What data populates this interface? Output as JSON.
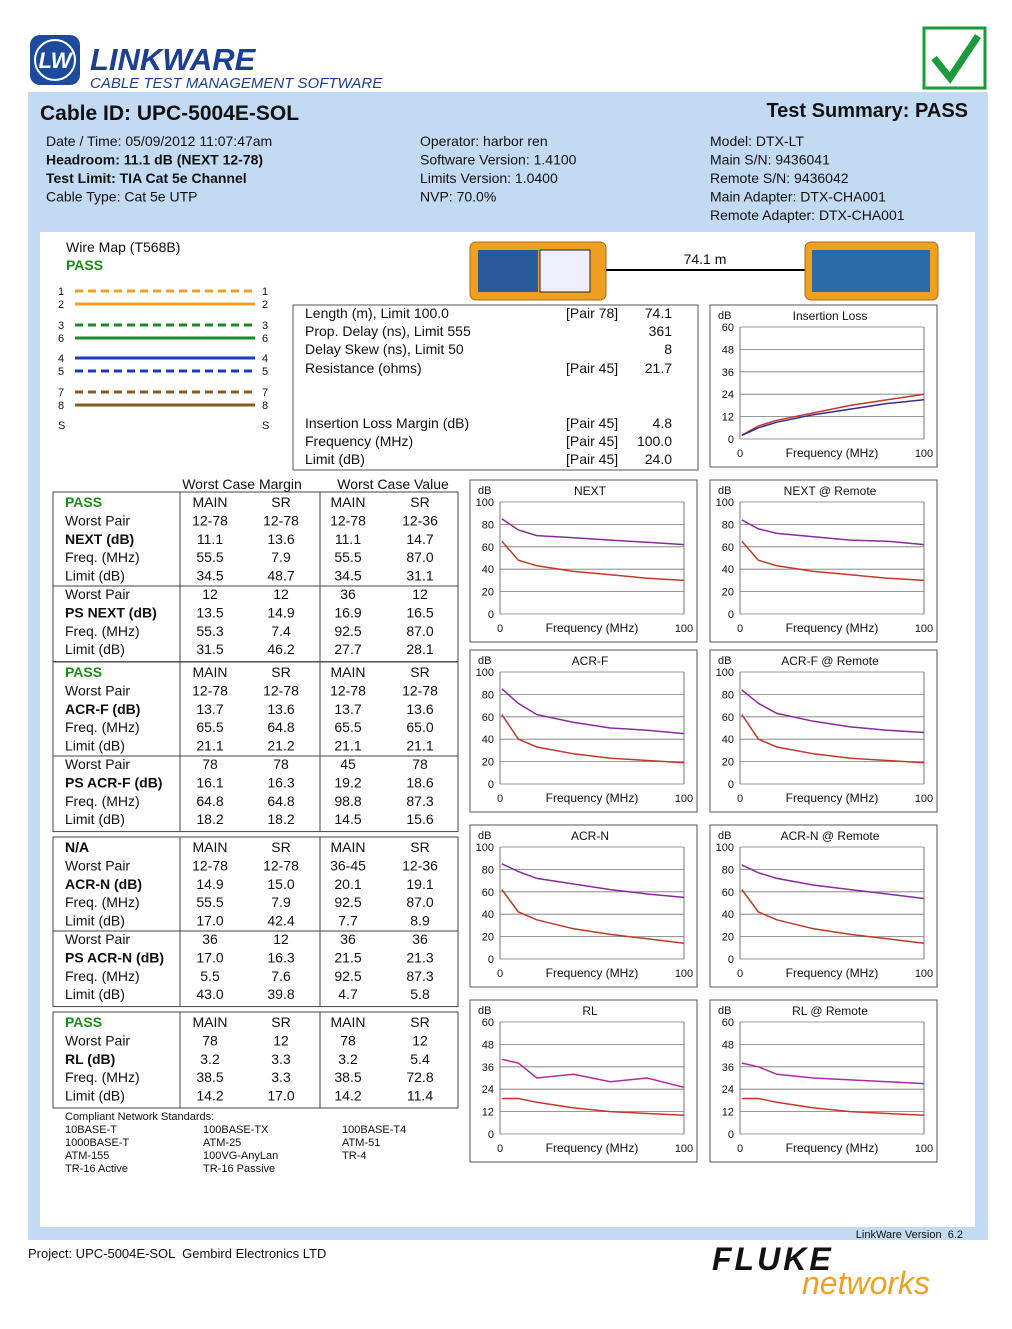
{
  "header": {
    "logo_mark": "LW",
    "logo_title": "LINKWARE",
    "logo_subtitle": "CABLE TEST MANAGEMENT SOFTWARE"
  },
  "cable_id": "Cable ID: UPC-5004E-SOL",
  "summary": "Test Summary: PASS",
  "info": [
    [
      "Date / Time: 05/09/2012 11:07:47am",
      "Headroom: 11.1 dB (NEXT 12-78)",
      "Test Limit: TIA Cat 5e Channel",
      "Cable Type: Cat 5e UTP"
    ],
    [
      "Operator: harbor ren",
      "Software Version: 1.4100",
      "Limits Version: 1.0400",
      "NVP: 70.0%"
    ],
    [
      "Model: DTX-LT",
      "Main S/N: 9436041",
      "Remote S/N: 9436042",
      "Main Adapter: DTX-CHA001",
      "Remote Adapter: DTX-CHA001"
    ]
  ],
  "wire_map": {
    "title": "Wire Map (T568B)",
    "result": "PASS",
    "pins": [
      "1",
      "2",
      "3",
      "6",
      "4",
      "5",
      "7",
      "8",
      "S"
    ]
  },
  "length_label": "74.1 m",
  "measurements": [
    {
      "label": "Length (m), Limit 100.0",
      "pair": "[Pair 78]",
      "value": "74.1"
    },
    {
      "label": "Prop. Delay (ns), Limit 555",
      "value": "361"
    },
    {
      "label": "Delay Skew (ns), Limit 50",
      "value": "8"
    },
    {
      "label": "Resistance (ohms)",
      "pair": "[Pair 45]",
      "value": "21.7"
    },
    {
      "label": "Insertion Loss Margin (dB)",
      "pair": "[Pair 45]",
      "value": "4.8"
    },
    {
      "label": "Frequency (MHz)",
      "pair": "[Pair 45]",
      "value": "100.0"
    },
    {
      "label": "Limit (dB)",
      "pair": "[Pair 45]",
      "value": "24.0"
    }
  ],
  "tables": {
    "group_headers": [
      "Worst Case Margin",
      "Worst Case Value"
    ],
    "sections": [
      {
        "status_color": "#1a8a1a",
        "header": [
          "PASS",
          "MAIN",
          "SR",
          "MAIN",
          "SR"
        ],
        "rows": [
          [
            "Worst Pair",
            "12-78",
            "12-78",
            "12-78",
            "12-36"
          ],
          [
            "NEXT (dB)",
            "11.1",
            "13.6",
            "11.1",
            "14.7"
          ],
          [
            "Freq. (MHz)",
            "55.5",
            "7.9",
            "55.5",
            "87.0"
          ],
          [
            "Limit (dB)",
            "34.5",
            "48.7",
            "34.5",
            "31.1"
          ],
          [
            "Worst Pair",
            "12",
            "12",
            "36",
            "12"
          ],
          [
            "PS NEXT (dB)",
            "13.5",
            "14.9",
            "16.9",
            "16.5"
          ],
          [
            "Freq. (MHz)",
            "55.3",
            "7.4",
            "92.5",
            "87.0"
          ],
          [
            "Limit (dB)",
            "31.5",
            "46.2",
            "27.7",
            "28.1"
          ]
        ]
      },
      {
        "status_color": "#1a8a1a",
        "header": [
          "PASS",
          "MAIN",
          "SR",
          "MAIN",
          "SR"
        ],
        "rows": [
          [
            "Worst Pair",
            "12-78",
            "12-78",
            "12-78",
            "12-78"
          ],
          [
            "ACR-F (dB)",
            "13.7",
            "13.6",
            "13.7",
            "13.6"
          ],
          [
            "Freq. (MHz)",
            "65.5",
            "64.8",
            "65.5",
            "65.0"
          ],
          [
            "Limit (dB)",
            "21.1",
            "21.2",
            "21.1",
            "21.1"
          ],
          [
            "Worst Pair",
            "78",
            "78",
            "45",
            "78"
          ],
          [
            "PS ACR-F (dB)",
            "16.1",
            "16.3",
            "19.2",
            "18.6"
          ],
          [
            "Freq. (MHz)",
            "64.8",
            "64.8",
            "98.8",
            "87.3"
          ],
          [
            "Limit (dB)",
            "18.2",
            "18.2",
            "14.5",
            "15.6"
          ]
        ]
      },
      {
        "status_color": "#000000",
        "header": [
          "N/A",
          "MAIN",
          "SR",
          "MAIN",
          "SR"
        ],
        "rows": [
          [
            "Worst Pair",
            "12-78",
            "12-78",
            "36-45",
            "12-36"
          ],
          [
            "ACR-N (dB)",
            "14.9",
            "15.0",
            "20.1",
            "19.1"
          ],
          [
            "Freq. (MHz)",
            "55.5",
            "7.9",
            "92.5",
            "87.0"
          ],
          [
            "Limit (dB)",
            "17.0",
            "42.4",
            "7.7",
            "8.9"
          ],
          [
            "Worst Pair",
            "36",
            "12",
            "36",
            "36"
          ],
          [
            "PS ACR-N (dB)",
            "17.0",
            "16.3",
            "21.5",
            "21.3"
          ],
          [
            "Freq. (MHz)",
            "5.5",
            "7.6",
            "92.5",
            "87.3"
          ],
          [
            "Limit (dB)",
            "43.0",
            "39.8",
            "4.7",
            "5.8"
          ]
        ]
      },
      {
        "status_color": "#1a8a1a",
        "header": [
          "PASS",
          "MAIN",
          "SR",
          "MAIN",
          "SR"
        ],
        "rows": [
          [
            "Worst Pair",
            "78",
            "12",
            "78",
            "12"
          ],
          [
            "RL (dB)",
            "3.2",
            "3.3",
            "3.2",
            "5.4"
          ],
          [
            "Freq. (MHz)",
            "38.5",
            "3.3",
            "38.5",
            "72.8"
          ],
          [
            "Limit (dB)",
            "14.2",
            "17.0",
            "14.2",
            "11.4"
          ]
        ]
      }
    ]
  },
  "standards": {
    "title": "Compliant Network Standards:",
    "items": [
      [
        "10BASE-T",
        "100BASE-TX",
        "100BASE-T4"
      ],
      [
        "1000BASE-T",
        "ATM-25",
        "ATM-51"
      ],
      [
        "ATM-155",
        "100VG-AnyLan",
        "TR-4"
      ],
      [
        "TR-16 Active",
        "TR-16 Passive"
      ]
    ]
  },
  "chart_data": [
    {
      "type": "line",
      "title": "Insertion Loss",
      "ylabel": "dB",
      "xlabel": "Frequency (MHz)",
      "x": [
        1,
        10,
        20,
        40,
        60,
        80,
        100
      ],
      "xlim": [
        0,
        100
      ],
      "xticks": [
        0,
        100
      ],
      "ylim": [
        0,
        60
      ],
      "yticks": [
        0,
        12,
        24,
        36,
        48,
        60
      ],
      "series": [
        {
          "color": "#c0392b",
          "values": [
            2,
            7,
            10,
            14,
            18,
            21,
            24
          ]
        },
        {
          "color": "#3a2a8c",
          "values": [
            2,
            6,
            9,
            13,
            16,
            19,
            21
          ]
        }
      ]
    },
    {
      "type": "line",
      "title": "NEXT",
      "ylabel": "dB",
      "xlabel": "Frequency (MHz)",
      "x": [
        1,
        10,
        20,
        40,
        60,
        80,
        100
      ],
      "xlim": [
        0,
        100
      ],
      "xticks": [
        0,
        100
      ],
      "ylim": [
        0,
        100
      ],
      "yticks": [
        0,
        20,
        40,
        60,
        80,
        100
      ],
      "series": [
        {
          "color": "#c0392b",
          "values": [
            65,
            48,
            43,
            38,
            35,
            32,
            30
          ]
        },
        {
          "color": "#8a2a9c",
          "values": [
            85,
            75,
            70,
            68,
            66,
            64,
            62
          ]
        }
      ]
    },
    {
      "type": "line",
      "title": "NEXT @ Remote",
      "ylabel": "dB",
      "xlabel": "Frequency (MHz)",
      "x": [
        1,
        10,
        20,
        40,
        60,
        80,
        100
      ],
      "xlim": [
        0,
        100
      ],
      "xticks": [
        0,
        100
      ],
      "ylim": [
        0,
        100
      ],
      "yticks": [
        0,
        20,
        40,
        60,
        80,
        100
      ],
      "series": [
        {
          "color": "#c0392b",
          "values": [
            65,
            48,
            43,
            38,
            35,
            32,
            30
          ]
        },
        {
          "color": "#8a2a9c",
          "values": [
            84,
            76,
            72,
            69,
            66,
            65,
            62
          ]
        }
      ]
    },
    {
      "type": "line",
      "title": "ACR-F",
      "ylabel": "dB",
      "xlabel": "Frequency (MHz)",
      "x": [
        1,
        10,
        20,
        40,
        60,
        80,
        100
      ],
      "xlim": [
        0,
        100
      ],
      "xticks": [
        0,
        100
      ],
      "ylim": [
        0,
        100
      ],
      "yticks": [
        0,
        20,
        40,
        60,
        80,
        100
      ],
      "series": [
        {
          "color": "#c0392b",
          "values": [
            62,
            40,
            33,
            27,
            23,
            21,
            19
          ]
        },
        {
          "color": "#8a2a9c",
          "values": [
            85,
            72,
            62,
            55,
            50,
            48,
            45
          ]
        }
      ]
    },
    {
      "type": "line",
      "title": "ACR-F @ Remote",
      "ylabel": "dB",
      "xlabel": "Frequency (MHz)",
      "x": [
        1,
        10,
        20,
        40,
        60,
        80,
        100
      ],
      "xlim": [
        0,
        100
      ],
      "xticks": [
        0,
        100
      ],
      "ylim": [
        0,
        100
      ],
      "yticks": [
        0,
        20,
        40,
        60,
        80,
        100
      ],
      "series": [
        {
          "color": "#c0392b",
          "values": [
            62,
            40,
            33,
            27,
            23,
            21,
            19
          ]
        },
        {
          "color": "#8a2a9c",
          "values": [
            84,
            72,
            63,
            56,
            51,
            48,
            46
          ]
        }
      ]
    },
    {
      "type": "line",
      "title": "ACR-N",
      "ylabel": "dB",
      "xlabel": "Frequency (MHz)",
      "x": [
        1,
        10,
        20,
        40,
        60,
        80,
        100
      ],
      "xlim": [
        0,
        100
      ],
      "xticks": [
        0,
        100
      ],
      "ylim": [
        0,
        100
      ],
      "yticks": [
        0,
        20,
        40,
        60,
        80,
        100
      ],
      "series": [
        {
          "color": "#c0392b",
          "values": [
            62,
            42,
            35,
            27,
            22,
            18,
            14
          ]
        },
        {
          "color": "#8a2a9c",
          "values": [
            85,
            78,
            72,
            67,
            62,
            58,
            55
          ]
        }
      ]
    },
    {
      "type": "line",
      "title": "ACR-N @ Remote",
      "ylabel": "dB",
      "xlabel": "Frequency (MHz)",
      "x": [
        1,
        10,
        20,
        40,
        60,
        80,
        100
      ],
      "xlim": [
        0,
        100
      ],
      "xticks": [
        0,
        100
      ],
      "ylim": [
        0,
        100
      ],
      "yticks": [
        0,
        20,
        40,
        60,
        80,
        100
      ],
      "series": [
        {
          "color": "#c0392b",
          "values": [
            62,
            42,
            35,
            27,
            22,
            18,
            14
          ]
        },
        {
          "color": "#8a2a9c",
          "values": [
            84,
            77,
            72,
            66,
            62,
            58,
            54
          ]
        }
      ]
    },
    {
      "type": "line",
      "title": "RL",
      "ylabel": "dB",
      "xlabel": "Frequency (MHz)",
      "x": [
        1,
        10,
        20,
        40,
        60,
        80,
        100
      ],
      "xlim": [
        0,
        100
      ],
      "xticks": [
        0,
        100
      ],
      "ylim": [
        0,
        60
      ],
      "yticks": [
        0,
        12,
        24,
        36,
        48,
        60
      ],
      "series": [
        {
          "color": "#c0392b",
          "values": [
            19,
            19,
            17,
            14,
            12,
            11,
            10
          ]
        },
        {
          "color": "#b02a9c",
          "values": [
            40,
            38,
            30,
            32,
            28,
            30,
            25
          ]
        }
      ]
    },
    {
      "type": "line",
      "title": "RL @ Remote",
      "ylabel": "dB",
      "xlabel": "Frequency (MHz)",
      "x": [
        1,
        10,
        20,
        40,
        60,
        80,
        100
      ],
      "xlim": [
        0,
        100
      ],
      "xticks": [
        0,
        100
      ],
      "ylim": [
        0,
        60
      ],
      "yticks": [
        0,
        12,
        24,
        36,
        48,
        60
      ],
      "series": [
        {
          "color": "#c0392b",
          "values": [
            19,
            19,
            17,
            14,
            12,
            11,
            10
          ]
        },
        {
          "color": "#b02a9c",
          "values": [
            38,
            36,
            32,
            30,
            29,
            28,
            27
          ]
        }
      ]
    }
  ],
  "footer": {
    "version": "LinkWare Version  6.2",
    "project": "Project: UPC-5004E-SOL  Gembird Electronics LTD",
    "brand": "FLUKE",
    "brand_sub": "networks"
  }
}
